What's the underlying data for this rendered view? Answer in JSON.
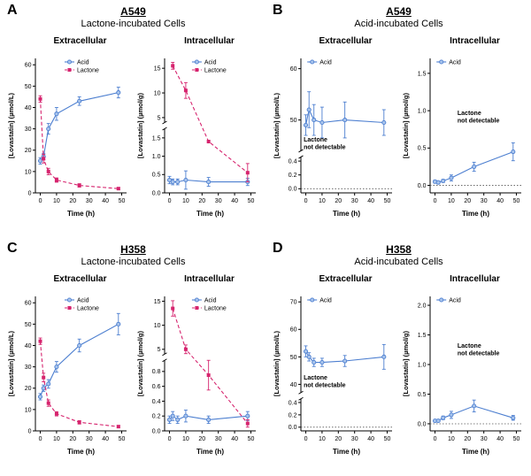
{
  "colors": {
    "acid": "#4d7fd0",
    "acid_fill": "#a8c4ec",
    "lactone": "#d6246e",
    "annotation": "#e6218a",
    "axis": "#000000"
  },
  "panels": [
    {
      "label": "A",
      "cell_line": "A549",
      "subtitle": "Lactone-incubated Cells"
    },
    {
      "label": "B",
      "cell_line": "A549",
      "subtitle": "Acid-incubated Cells"
    },
    {
      "label": "C",
      "cell_line": "H358",
      "subtitle": "Lactone-incubated Cells"
    },
    {
      "label": "D",
      "cell_line": "H358",
      "subtitle": "Acid-incubated Cells"
    }
  ],
  "chart_data": [
    {
      "panel": "A",
      "type": "line",
      "title": "Extracellular",
      "xlabel": "Time (h)",
      "ylabel": "[Lovastatin] (µmol/L)",
      "xlim": [
        -3,
        53
      ],
      "xticks": [
        0,
        10,
        20,
        30,
        40,
        50
      ],
      "yaxis": {
        "segments": [
          {
            "min": 0,
            "max": 63,
            "w": 1,
            "ticks": [
              {
                "v": 0,
                "l": "0"
              },
              {
                "v": 10,
                "l": "10"
              },
              {
                "v": 20,
                "l": "20"
              },
              {
                "v": 30,
                "l": "30"
              },
              {
                "v": 40,
                "l": "40"
              },
              {
                "v": 50,
                "l": "50"
              },
              {
                "v": 60,
                "l": "60"
              }
            ]
          }
        ]
      },
      "series": [
        {
          "name": "Acid",
          "color": "acid",
          "marker": "circle",
          "dash": "solid",
          "x": [
            0,
            2,
            5,
            10,
            24,
            48
          ],
          "y": [
            15,
            17,
            30,
            37,
            43,
            47
          ],
          "err": [
            1.5,
            1.5,
            2.5,
            3,
            2,
            2.5
          ]
        },
        {
          "name": "Lactone",
          "color": "lactone",
          "marker": "square",
          "dash": "dashed",
          "x": [
            0,
            2,
            5,
            10,
            24,
            48
          ],
          "y": [
            44,
            16,
            10,
            6,
            3.5,
            2
          ],
          "err": [
            1.5,
            2,
            1.5,
            1,
            0.8,
            0.5
          ]
        }
      ],
      "legend": {
        "fx": 0.32,
        "fy": 0
      }
    },
    {
      "panel": "A",
      "type": "line",
      "title": "Intracellular",
      "xlabel": "Time (h)",
      "ylabel": "[Lovastatin] (µmol/g)",
      "xlim": [
        -3,
        53
      ],
      "xticks": [
        0,
        10,
        20,
        30,
        40,
        50
      ],
      "yaxis": {
        "segments": [
          {
            "min": 0,
            "max": 1.75,
            "w": 0.5,
            "ticks": [
              {
                "v": 0,
                "l": "0.0"
              },
              {
                "v": 0.5,
                "l": "0.5"
              },
              {
                "v": 1,
                "l": "1.0"
              },
              {
                "v": 1.5,
                "l": "1.5"
              }
            ]
          },
          {
            "min": 4,
            "max": 17,
            "w": 0.5,
            "ticks": [
              {
                "v": 5,
                "l": "5"
              },
              {
                "v": 10,
                "l": "10"
              },
              {
                "v": 15,
                "l": "15"
              }
            ]
          }
        ]
      },
      "series": [
        {
          "name": "Acid",
          "color": "acid",
          "marker": "circle",
          "dash": "solid",
          "x": [
            0,
            2,
            5,
            10,
            24,
            48
          ],
          "y": [
            0.35,
            0.3,
            0.3,
            0.35,
            0.3,
            0.3
          ],
          "err": [
            0.1,
            0.08,
            0.08,
            0.25,
            0.12,
            0.1
          ]
        },
        {
          "name": "Lactone",
          "color": "lactone",
          "marker": "square",
          "dash": "dashed",
          "x": [
            2,
            10,
            24,
            48
          ],
          "y": [
            15.5,
            10.5,
            1.4,
            0.55
          ],
          "err": [
            0.7,
            1.6,
            0,
            0.25
          ]
        }
      ],
      "legend": {
        "fx": 0.3,
        "fy": 0
      }
    },
    {
      "panel": "B",
      "type": "line",
      "title": "Extracellular",
      "xlabel": "Time (h)",
      "ylabel": "[Lovastatin] (µmol/L)",
      "xlim": [
        -3,
        53
      ],
      "xticks": [
        0,
        10,
        20,
        30,
        40,
        50
      ],
      "yaxis": {
        "segments": [
          {
            "min": -0.06,
            "max": 0.46,
            "w": 0.28,
            "ticks": [
              {
                "v": 0,
                "l": "0.0"
              },
              {
                "v": 0.2,
                "l": "0.2"
              },
              {
                "v": 0.4,
                "l": "0.4"
              }
            ]
          },
          {
            "min": 44,
            "max": 62,
            "w": 0.72,
            "ticks": [
              {
                "v": 50,
                "l": "50"
              },
              {
                "v": 60,
                "l": "60"
              }
            ]
          }
        ]
      },
      "series": [
        {
          "name": "Acid",
          "color": "acid",
          "marker": "circle",
          "dash": "solid",
          "x": [
            0,
            2,
            5,
            10,
            24,
            48
          ],
          "y": [
            49,
            52,
            50,
            49.5,
            50,
            49.5
          ],
          "err": [
            2,
            3.5,
            3,
            3,
            3.5,
            2.5
          ]
        }
      ],
      "zeroline": true,
      "annotation": {
        "lines": [
          "Lactone",
          "not detectable"
        ],
        "fx": 0.03,
        "fy": 0.62
      },
      "legend": {
        "fx": 0.07,
        "fy": 0
      }
    },
    {
      "panel": "B",
      "type": "line",
      "title": "Intracellular",
      "xlabel": "Time (h)",
      "ylabel": "[Lovastatin] (µmol/g)",
      "xlim": [
        -3,
        53
      ],
      "xticks": [
        0,
        10,
        20,
        30,
        40,
        50
      ],
      "yaxis": {
        "segments": [
          {
            "min": -0.1,
            "max": 1.7,
            "w": 1,
            "ticks": [
              {
                "v": 0,
                "l": "0.0"
              },
              {
                "v": 0.5,
                "l": "0.5"
              },
              {
                "v": 1,
                "l": "1.0"
              },
              {
                "v": 1.5,
                "l": "1.5"
              }
            ]
          }
        ]
      },
      "series": [
        {
          "name": "Acid",
          "color": "acid",
          "marker": "circle",
          "dash": "solid",
          "x": [
            0,
            2,
            5,
            10,
            24,
            48
          ],
          "y": [
            0.05,
            0.04,
            0.06,
            0.1,
            0.25,
            0.45
          ],
          "err": [
            0.02,
            0.02,
            0.02,
            0.04,
            0.06,
            0.12
          ]
        }
      ],
      "zeroline": true,
      "annotation": {
        "lines": [
          "Lactone",
          "not detectable"
        ],
        "fx": 0.3,
        "fy": 0.42
      },
      "legend": {
        "fx": 0.07,
        "fy": 0
      }
    },
    {
      "panel": "C",
      "type": "line",
      "title": "Extracellular",
      "xlabel": "Time (h)",
      "ylabel": "[Lovastatin] (µmol/L)",
      "xlim": [
        -3,
        53
      ],
      "xticks": [
        0,
        10,
        20,
        30,
        40,
        50
      ],
      "yaxis": {
        "segments": [
          {
            "min": 0,
            "max": 63,
            "w": 1,
            "ticks": [
              {
                "v": 0,
                "l": "0"
              },
              {
                "v": 10,
                "l": "10"
              },
              {
                "v": 20,
                "l": "20"
              },
              {
                "v": 30,
                "l": "30"
              },
              {
                "v": 40,
                "l": "40"
              },
              {
                "v": 50,
                "l": "50"
              },
              {
                "v": 60,
                "l": "60"
              }
            ]
          }
        ]
      },
      "series": [
        {
          "name": "Acid",
          "color": "acid",
          "marker": "circle",
          "dash": "solid",
          "x": [
            0,
            2,
            5,
            10,
            24,
            48
          ],
          "y": [
            16,
            20,
            22,
            30,
            40,
            50
          ],
          "err": [
            1.5,
            1.5,
            2,
            2.5,
            3,
            5
          ]
        },
        {
          "name": "Lactone",
          "color": "lactone",
          "marker": "square",
          "dash": "dashed",
          "x": [
            0,
            2,
            5,
            10,
            24,
            48
          ],
          "y": [
            42,
            25,
            13,
            8,
            4,
            2
          ],
          "err": [
            1.5,
            2,
            1.5,
            1,
            0.8,
            0.5
          ]
        }
      ],
      "legend": {
        "fx": 0.32,
        "fy": 0
      }
    },
    {
      "panel": "C",
      "type": "line",
      "title": "Intracellular",
      "xlabel": "Time (h)",
      "ylabel": "[Lovastatin] (µmol/g)",
      "xlim": [
        -3,
        53
      ],
      "xticks": [
        0,
        10,
        20,
        30,
        40,
        50
      ],
      "yaxis": {
        "segments": [
          {
            "min": 0,
            "max": 0.95,
            "w": 0.55,
            "ticks": [
              {
                "v": 0,
                "l": "0.0"
              },
              {
                "v": 0.2,
                "l": "0.2"
              },
              {
                "v": 0.4,
                "l": "0.4"
              },
              {
                "v": 0.6,
                "l": "0.6"
              },
              {
                "v": 0.8,
                "l": "0.8"
              }
            ]
          },
          {
            "min": 4,
            "max": 16,
            "w": 0.45,
            "ticks": [
              {
                "v": 5,
                "l": "5"
              },
              {
                "v": 10,
                "l": "10"
              },
              {
                "v": 15,
                "l": "15"
              }
            ]
          }
        ]
      },
      "series": [
        {
          "name": "Acid",
          "color": "acid",
          "marker": "circle",
          "dash": "solid",
          "x": [
            0,
            2,
            5,
            10,
            24,
            48
          ],
          "y": [
            0.15,
            0.2,
            0.15,
            0.2,
            0.15,
            0.2
          ],
          "err": [
            0.05,
            0.06,
            0.05,
            0.08,
            0.05,
            0.06
          ]
        },
        {
          "name": "Lactone",
          "color": "lactone",
          "marker": "square",
          "dash": "dashed",
          "x": [
            2,
            10,
            24,
            48
          ],
          "y": [
            13.5,
            5,
            0.75,
            0.1
          ],
          "err": [
            1.6,
            0.9,
            0.2,
            0.05
          ]
        }
      ],
      "legend": {
        "fx": 0.3,
        "fy": 0
      }
    },
    {
      "panel": "D",
      "type": "line",
      "title": "Extracellular",
      "xlabel": "Time (h)",
      "ylabel": "[Lovastatin] (µmol/L)",
      "xlim": [
        -3,
        53
      ],
      "xticks": [
        0,
        10,
        20,
        30,
        40,
        50
      ],
      "yaxis": {
        "segments": [
          {
            "min": -0.06,
            "max": 0.46,
            "w": 0.25,
            "ticks": [
              {
                "v": 0,
                "l": "0.0"
              },
              {
                "v": 0.2,
                "l": "0.2"
              },
              {
                "v": 0.4,
                "l": "0.4"
              }
            ]
          },
          {
            "min": 37,
            "max": 72,
            "w": 0.75,
            "ticks": [
              {
                "v": 40,
                "l": "40"
              },
              {
                "v": 50,
                "l": "50"
              },
              {
                "v": 60,
                "l": "60"
              },
              {
                "v": 70,
                "l": "70"
              }
            ]
          }
        ]
      },
      "series": [
        {
          "name": "Acid",
          "color": "acid",
          "marker": "circle",
          "dash": "solid",
          "x": [
            0,
            2,
            5,
            10,
            24,
            48
          ],
          "y": [
            52,
            50,
            48,
            48,
            48.5,
            50
          ],
          "err": [
            2,
            1.5,
            1.5,
            1.5,
            2,
            4.5
          ]
        }
      ],
      "zeroline": true,
      "annotation": {
        "lines": [
          "Lactone",
          "not detectable"
        ],
        "fx": 0.03,
        "fy": 0.62
      },
      "legend": {
        "fx": 0.07,
        "fy": 0
      }
    },
    {
      "panel": "D",
      "type": "line",
      "title": "Intracellular",
      "xlabel": "Time (h)",
      "ylabel": "[Lovastatin] (µmol/g)",
      "xlim": [
        -3,
        53
      ],
      "xticks": [
        0,
        10,
        20,
        30,
        40,
        50
      ],
      "yaxis": {
        "segments": [
          {
            "min": -0.12,
            "max": 2.15,
            "w": 1,
            "ticks": [
              {
                "v": 0,
                "l": "0.0"
              },
              {
                "v": 0.5,
                "l": "0.5"
              },
              {
                "v": 1,
                "l": "1.0"
              },
              {
                "v": 1.5,
                "l": "1.5"
              },
              {
                "v": 2,
                "l": "2.0"
              }
            ]
          }
        ]
      },
      "series": [
        {
          "name": "Acid",
          "color": "acid",
          "marker": "circle",
          "dash": "solid",
          "x": [
            0,
            2,
            5,
            10,
            24,
            48
          ],
          "y": [
            0.05,
            0.05,
            0.1,
            0.15,
            0.3,
            0.1
          ],
          "err": [
            0.02,
            0.02,
            0.03,
            0.06,
            0.1,
            0.04
          ]
        }
      ],
      "zeroline": true,
      "annotation": {
        "lines": [
          "Lactone",
          "not detectable"
        ],
        "fx": 0.3,
        "fy": 0.38
      },
      "legend": {
        "fx": 0.07,
        "fy": 0
      }
    }
  ]
}
